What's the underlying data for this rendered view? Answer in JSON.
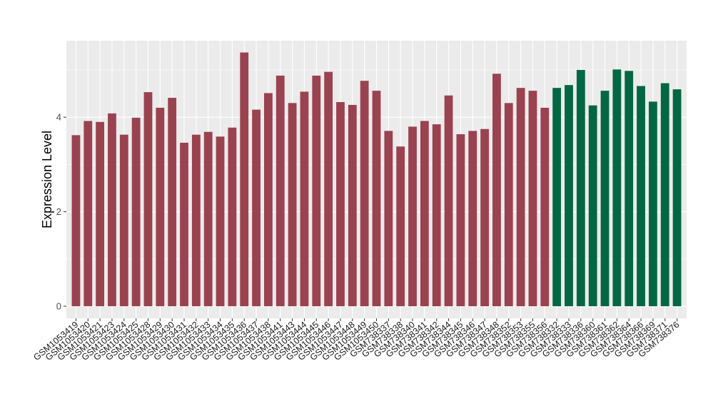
{
  "chart_data": {
    "type": "bar",
    "title": "",
    "xlabel": "",
    "ylabel": "Expression Level",
    "ylim": [
      0,
      5.6
    ],
    "yticks": [
      0,
      2,
      4
    ],
    "grid": true,
    "legend": "none",
    "colors": {
      "group1": "#9a4250",
      "group2": "#046744",
      "panel": "#ebebeb",
      "gridline": "#ffffff"
    },
    "categories": [
      "GSM1053419",
      "GSM1053420",
      "GSM1053421",
      "GSM1053423",
      "GSM1053424",
      "GSM1053425",
      "GSM1053428",
      "GSM1053429",
      "GSM1053430",
      "GSM1053431",
      "GSM1053432",
      "GSM1053433",
      "GSM1053434",
      "GSM1053435",
      "GSM1053436",
      "GSM1053437",
      "GSM1053438",
      "GSM1053441",
      "GSM1053443",
      "GSM1053444",
      "GSM1053445",
      "GSM1053446",
      "GSM1053447",
      "GSM1053448",
      "GSM1053449",
      "GSM1053450",
      "GSM738337",
      "GSM738338",
      "GSM738340",
      "GSM738341",
      "GSM738342",
      "GSM738344",
      "GSM738345",
      "GSM738346",
      "GSM738347",
      "GSM738348",
      "GSM738352",
      "GSM738353",
      "GSM738355",
      "GSM738356",
      "GSM738332",
      "GSM738333",
      "GSM738336",
      "GSM738360",
      "GSM738361",
      "GSM738362",
      "GSM738364",
      "GSM738366",
      "GSM738369",
      "GSM738371",
      "GSM738376"
    ],
    "values": [
      3.62,
      3.92,
      3.9,
      4.08,
      3.63,
      3.99,
      4.53,
      4.2,
      4.41,
      3.46,
      3.63,
      3.69,
      3.59,
      3.78,
      5.37,
      4.16,
      4.51,
      4.88,
      4.3,
      4.54,
      4.88,
      4.96,
      4.32,
      4.26,
      4.77,
      4.56,
      3.71,
      3.38,
      3.8,
      3.92,
      3.85,
      4.46,
      3.64,
      3.71,
      3.75,
      4.92,
      4.3,
      4.62,
      4.56,
      4.2,
      4.62,
      4.68,
      5.0,
      4.25,
      4.56,
      5.01,
      4.98,
      4.66,
      4.33,
      4.72,
      4.59
    ],
    "groups": [
      "group1",
      "group1",
      "group1",
      "group1",
      "group1",
      "group1",
      "group1",
      "group1",
      "group1",
      "group1",
      "group1",
      "group1",
      "group1",
      "group1",
      "group1",
      "group1",
      "group1",
      "group1",
      "group1",
      "group1",
      "group1",
      "group1",
      "group1",
      "group1",
      "group1",
      "group1",
      "group1",
      "group1",
      "group1",
      "group1",
      "group1",
      "group1",
      "group1",
      "group1",
      "group1",
      "group1",
      "group1",
      "group1",
      "group1",
      "group1",
      "group2",
      "group2",
      "group2",
      "group2",
      "group2",
      "group2",
      "group2",
      "group2",
      "group2",
      "group2",
      "group2"
    ]
  }
}
